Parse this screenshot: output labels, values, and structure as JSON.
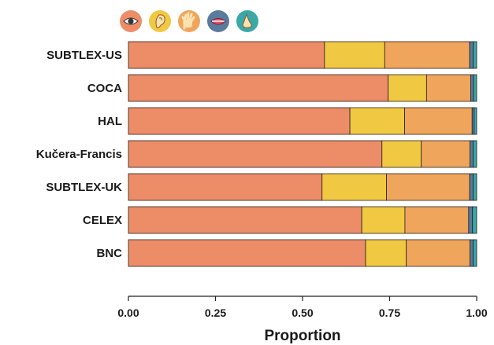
{
  "chart_data": {
    "type": "bar",
    "orientation": "horizontal",
    "stacked": true,
    "categories": [
      "SUBTLEX-US",
      "COCA",
      "HAL",
      "Kučera-Francis",
      "SUBTLEX-UK",
      "CELEX",
      "BNC"
    ],
    "series": [
      {
        "icon": "eye-icon",
        "color": "#ec8d68",
        "values": [
          0.563,
          0.746,
          0.636,
          0.728,
          0.556,
          0.67,
          0.681
        ]
      },
      {
        "icon": "ear-icon",
        "color": "#f0c842",
        "values": [
          0.173,
          0.11,
          0.157,
          0.113,
          0.185,
          0.124,
          0.117
        ]
      },
      {
        "icon": "hand-icon",
        "color": "#f0a55c",
        "values": [
          0.244,
          0.127,
          0.194,
          0.14,
          0.239,
          0.183,
          0.183
        ]
      },
      {
        "icon": "mouth-icon",
        "color": "#5a7a9e",
        "values": [
          0.01,
          0.008,
          0.006,
          0.009,
          0.01,
          0.011,
          0.009
        ]
      },
      {
        "icon": "nose-icon",
        "color": "#3aa8a8",
        "values": [
          0.01,
          0.009,
          0.007,
          0.01,
          0.01,
          0.012,
          0.01
        ]
      }
    ],
    "xlabel": "Proportion",
    "ylabel": "",
    "xlim": [
      0,
      1
    ],
    "xticks": [
      "0.00",
      "0.25",
      "0.50",
      "0.75",
      "1.00"
    ],
    "grid": false,
    "legend": "top-left icons"
  }
}
